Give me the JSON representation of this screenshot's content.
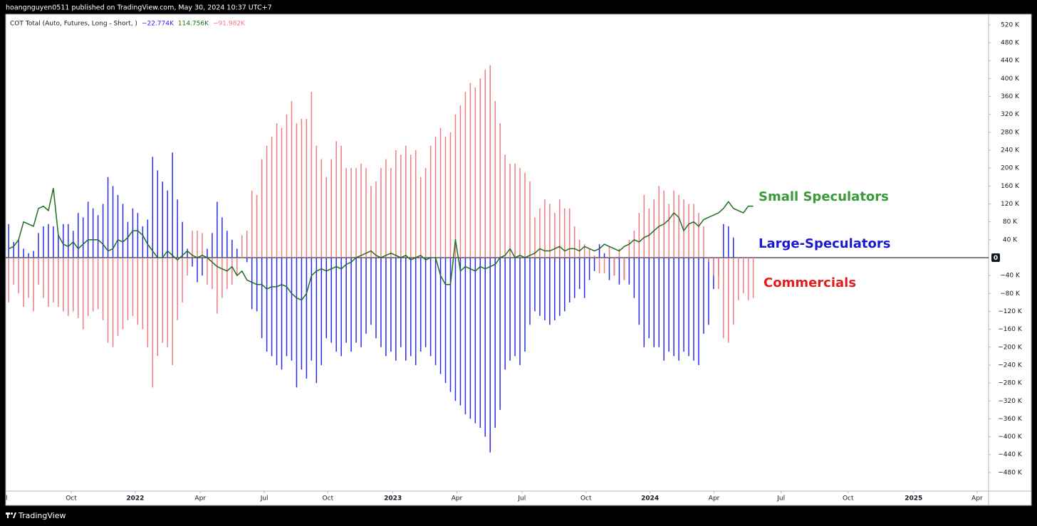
{
  "header": {
    "publisher": "hoangnguyen0511 published on TradingView.com, May 30, 2024 10:37 UTC+7"
  },
  "footer": {
    "brand": "TradingView"
  },
  "chart_data": {
    "type": "bar",
    "legend_title": "COT Total (Auto, Futures, Long - Short, )",
    "xlim": [
      -0.6,
      197.4
    ],
    "xticks": [
      {
        "value": -0.6,
        "label": "l"
      },
      {
        "value": 12.6,
        "label": "Oct"
      },
      {
        "value": 25.5,
        "label": "2022"
      },
      {
        "value": 38.6,
        "label": "Apr"
      },
      {
        "value": 51.5,
        "label": "Jul"
      },
      {
        "value": 64.3,
        "label": "Oct"
      },
      {
        "value": 77.4,
        "label": "2023"
      },
      {
        "value": 90.3,
        "label": "Apr"
      },
      {
        "value": 103.4,
        "label": "Jul"
      },
      {
        "value": 116.3,
        "label": "Oct"
      },
      {
        "value": 129.2,
        "label": "2024"
      },
      {
        "value": 142.1,
        "label": "Apr"
      },
      {
        "value": 155.6,
        "label": "Jul"
      },
      {
        "value": 169.1,
        "label": "Oct"
      },
      {
        "value": 182.3,
        "label": "2025"
      },
      {
        "value": 195.1,
        "label": "Apr"
      }
    ],
    "ylim": [
      -521.5,
      543.7
    ],
    "yticks": [
      {
        "value": 520,
        "label": "520 K"
      },
      {
        "value": 480,
        "label": "480 K"
      },
      {
        "value": 440,
        "label": "440 K"
      },
      {
        "value": 400,
        "label": "400 K"
      },
      {
        "value": 360,
        "label": "360 K"
      },
      {
        "value": 320,
        "label": "320 K"
      },
      {
        "value": 280,
        "label": "280 K"
      },
      {
        "value": 240,
        "label": "240 K"
      },
      {
        "value": 200,
        "label": "200 K"
      },
      {
        "value": 160,
        "label": "160 K"
      },
      {
        "value": 120,
        "label": "120 K"
      },
      {
        "value": 80,
        "label": "80 K"
      },
      {
        "value": 40,
        "label": "40 K"
      },
      0,
      {
        "value": -40,
        "label": "−40 K"
      },
      {
        "value": -80,
        "label": "−80 K"
      },
      {
        "value": -120,
        "label": "−120 K"
      },
      {
        "value": -160,
        "label": "−160 K"
      },
      {
        "value": -200,
        "label": "−200 K"
      },
      {
        "value": -240,
        "label": "−240 K"
      },
      {
        "value": -280,
        "label": "−280 K"
      },
      {
        "value": -320,
        "label": "−320 K"
      },
      {
        "value": -360,
        "label": "−360 K"
      },
      {
        "value": -400,
        "label": "−400 K"
      },
      {
        "value": -440,
        "label": "−440 K"
      },
      {
        "value": -480,
        "label": "−480 K"
      }
    ],
    "grid": false,
    "series": [
      {
        "name": "Large-Speculators",
        "type": "bar",
        "color": "#2a2af0",
        "last_label": "−22.774K",
        "values": [
          75,
          35,
          40,
          20,
          10,
          15,
          55,
          70,
          75,
          70,
          50,
          75,
          75,
          60,
          100,
          90,
          125,
          110,
          95,
          120,
          180,
          160,
          140,
          120,
          80,
          110,
          100,
          70,
          85,
          225,
          195,
          170,
          150,
          235,
          130,
          80,
          20,
          -20,
          -55,
          -40,
          20,
          55,
          125,
          90,
          60,
          40,
          20,
          5,
          -10,
          -115,
          -120,
          -180,
          -210,
          -220,
          -240,
          -250,
          -220,
          -230,
          -290,
          -250,
          -270,
          -230,
          -280,
          -240,
          -180,
          -190,
          -210,
          -220,
          -190,
          -210,
          -190,
          -200,
          -170,
          -150,
          -180,
          -200,
          -220,
          -210,
          -230,
          -200,
          -230,
          -220,
          -240,
          -210,
          -200,
          -220,
          -240,
          -260,
          -280,
          -300,
          -320,
          -330,
          -350,
          -360,
          -370,
          -380,
          -400,
          -435,
          -380,
          -340,
          -250,
          -230,
          -220,
          -240,
          -210,
          -150,
          -120,
          -130,
          -140,
          -150,
          -140,
          -130,
          -120,
          -100,
          -90,
          -70,
          -90,
          -50,
          -30,
          30,
          10,
          -50,
          -40,
          -60,
          -50,
          -60,
          -90,
          -150,
          -200,
          -180,
          -200,
          -200,
          -230,
          -210,
          -220,
          -230,
          -210,
          -220,
          -230,
          -240,
          -170,
          -150,
          -70,
          -40,
          75,
          70,
          45,
          null,
          null,
          null,
          null
        ]
      },
      {
        "name": "Small Speculators",
        "type": "line",
        "color": "#1e6e1e",
        "last_label": "114.756K",
        "values": [
          20,
          25,
          40,
          80,
          75,
          70,
          110,
          115,
          105,
          155,
          50,
          30,
          25,
          35,
          20,
          30,
          40,
          40,
          40,
          30,
          15,
          20,
          40,
          35,
          45,
          60,
          60,
          50,
          30,
          15,
          0,
          0,
          15,
          5,
          -5,
          5,
          15,
          5,
          0,
          5,
          0,
          -10,
          -20,
          -25,
          -30,
          -20,
          -40,
          -30,
          -50,
          -55,
          -60,
          -60,
          -70,
          -65,
          -65,
          -60,
          -65,
          -80,
          -90,
          -95,
          -80,
          -40,
          -30,
          -25,
          -30,
          -25,
          -20,
          -25,
          -15,
          -10,
          0,
          5,
          10,
          15,
          5,
          0,
          5,
          10,
          5,
          0,
          5,
          -5,
          0,
          5,
          -5,
          0,
          0,
          -40,
          -60,
          -60,
          40,
          -30,
          -20,
          -25,
          -30,
          -20,
          -25,
          -20,
          -15,
          0,
          5,
          20,
          0,
          5,
          0,
          5,
          10,
          20,
          15,
          15,
          20,
          25,
          15,
          20,
          20,
          15,
          25,
          20,
          15,
          20,
          30,
          25,
          20,
          15,
          25,
          30,
          40,
          35,
          45,
          50,
          60,
          70,
          75,
          85,
          100,
          90,
          60,
          75,
          80,
          70,
          85,
          90,
          95,
          100,
          110,
          125,
          110,
          105,
          100,
          115,
          115
        ]
      },
      {
        "name": "Commercials",
        "type": "bar",
        "color": "#f07a80",
        "last_label": "−91.982K",
        "values": [
          -100,
          -60,
          -80,
          -110,
          -90,
          -120,
          -60,
          -90,
          -110,
          -100,
          -110,
          -120,
          -130,
          -120,
          -135,
          -160,
          -130,
          -120,
          -115,
          -140,
          -190,
          -200,
          -175,
          -160,
          -140,
          -130,
          -150,
          -160,
          -200,
          -290,
          -220,
          -190,
          -200,
          -240,
          -140,
          -100,
          -40,
          60,
          60,
          55,
          -60,
          -70,
          -125,
          -90,
          -70,
          -60,
          -40,
          50,
          60,
          150,
          140,
          220,
          250,
          270,
          300,
          290,
          320,
          350,
          300,
          310,
          310,
          370,
          250,
          220,
          180,
          220,
          260,
          250,
          200,
          200,
          200,
          210,
          200,
          160,
          170,
          200,
          220,
          200,
          240,
          230,
          250,
          230,
          240,
          180,
          200,
          250,
          270,
          290,
          270,
          280,
          320,
          340,
          370,
          390,
          380,
          400,
          420,
          430,
          350,
          300,
          230,
          210,
          210,
          200,
          190,
          170,
          90,
          110,
          130,
          120,
          100,
          130,
          110,
          110,
          70,
          40,
          30,
          20,
          5,
          -35,
          -35,
          25,
          -40,
          20,
          -50,
          40,
          60,
          100,
          140,
          110,
          130,
          160,
          150,
          120,
          150,
          140,
          130,
          120,
          120,
          100,
          70,
          -10,
          -40,
          -70,
          -180,
          -190,
          -150,
          -95,
          -80,
          -95,
          -90
        ]
      }
    ]
  }
}
